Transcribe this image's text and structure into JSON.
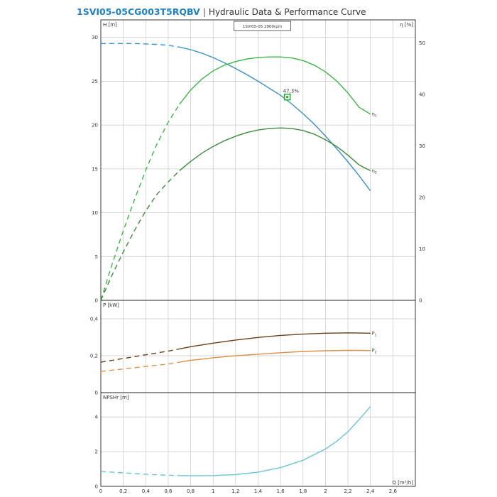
{
  "header": {
    "model": "1SVI05-05CG003T5RQBV",
    "separator": "|",
    "subtitle": "Hydraulic Data & Performance Curve"
  },
  "colors": {
    "head": "#3b8fc4",
    "eta1": "#3fb548",
    "eta2": "#3e8b3e",
    "p1": "#6b3f18",
    "p2": "#e0914a",
    "npsh": "#6cc4d4",
    "grid": "#c8c8c8",
    "axis": "#222222",
    "text": "#333333"
  },
  "chart_data": [
    {
      "id": "head_eff",
      "type": "line",
      "legend_box": "1SVI05-05 2900rpm",
      "ylabel_left": "H [m]",
      "ylabel_right": "η [%]",
      "xlim": [
        0,
        2.8
      ],
      "ylim_left": [
        0,
        32
      ],
      "ylim_right": [
        0,
        54.5
      ],
      "yticks_left": [
        "0",
        "5",
        "10",
        "15",
        "20",
        "25",
        "30"
      ],
      "yticks_right": [
        "0",
        "10",
        "20",
        "30",
        "40",
        "50"
      ],
      "grid": true,
      "annotation": {
        "text": "47,3%",
        "x": 1.66,
        "y": 23.2
      },
      "series": [
        {
          "key": "head",
          "axis": "left",
          "dash_until": 0.7,
          "x": [
            0,
            0.1,
            0.2,
            0.3,
            0.4,
            0.5,
            0.6,
            0.7,
            0.8,
            0.9,
            1.0,
            1.1,
            1.2,
            1.3,
            1.4,
            1.5,
            1.6,
            1.7,
            1.8,
            1.9,
            2.0,
            2.1,
            2.2,
            2.3,
            2.4
          ],
          "y": [
            29.3,
            29.3,
            29.3,
            29.3,
            29.25,
            29.2,
            29.1,
            28.9,
            28.6,
            28.2,
            27.7,
            27.1,
            26.45,
            25.75,
            25.0,
            24.2,
            23.4,
            22.4,
            21.3,
            20.1,
            18.75,
            17.3,
            15.8,
            14.2,
            12.5
          ]
        },
        {
          "key": "eta1",
          "axis": "right",
          "name": "η",
          "sub": "1",
          "dash_until": 0.7,
          "x": [
            0,
            0.1,
            0.2,
            0.3,
            0.4,
            0.5,
            0.6,
            0.7,
            0.8,
            0.9,
            1.0,
            1.1,
            1.2,
            1.3,
            1.4,
            1.5,
            1.6,
            1.7,
            1.8,
            1.9,
            2.0,
            2.1,
            2.2,
            2.3,
            2.4
          ],
          "y": [
            0,
            7.0,
            13.5,
            19.6,
            25.3,
            30.4,
            34.6,
            38.1,
            40.9,
            43.0,
            44.6,
            45.7,
            46.4,
            46.9,
            47.2,
            47.3,
            47.3,
            47.1,
            46.6,
            45.7,
            44.4,
            42.6,
            40.3,
            37.5,
            36.2
          ]
        },
        {
          "key": "eta2",
          "axis": "right",
          "name": "η",
          "sub": "2",
          "dash_until": 0.7,
          "x": [
            0,
            0.1,
            0.2,
            0.3,
            0.4,
            0.5,
            0.6,
            0.7,
            0.8,
            0.9,
            1.0,
            1.1,
            1.2,
            1.3,
            1.4,
            1.5,
            1.6,
            1.7,
            1.8,
            1.9,
            2.0,
            2.1,
            2.2,
            2.3,
            2.4
          ],
          "y": [
            0,
            4.9,
            9.4,
            13.6,
            17.4,
            20.6,
            23.0,
            25.2,
            27.0,
            28.6,
            29.9,
            31.0,
            31.9,
            32.6,
            33.1,
            33.4,
            33.5,
            33.4,
            33.0,
            32.3,
            31.2,
            29.9,
            28.2,
            26.3,
            25.2
          ]
        }
      ]
    },
    {
      "id": "power",
      "type": "line",
      "ylabel": "P [kW]",
      "xlim": [
        0,
        2.8
      ],
      "ylim": [
        0,
        0.5
      ],
      "yticks": [
        "0",
        "0,2",
        "0,4"
      ],
      "grid": true,
      "series": [
        {
          "key": "p1",
          "name": "P",
          "sub": "1",
          "dash_until": 0.7,
          "x": [
            0,
            0.2,
            0.4,
            0.6,
            0.7,
            0.8,
            1.0,
            1.2,
            1.4,
            1.6,
            1.8,
            2.0,
            2.2,
            2.4
          ],
          "y": [
            0.165,
            0.185,
            0.205,
            0.225,
            0.237,
            0.249,
            0.268,
            0.285,
            0.299,
            0.31,
            0.317,
            0.322,
            0.324,
            0.322
          ]
        },
        {
          "key": "p2",
          "name": "P",
          "sub": "2",
          "dash_until": 0.7,
          "x": [
            0,
            0.2,
            0.4,
            0.6,
            0.7,
            0.8,
            1.0,
            1.2,
            1.4,
            1.6,
            1.8,
            2.0,
            2.2,
            2.4
          ],
          "y": [
            0.115,
            0.128,
            0.142,
            0.155,
            0.165,
            0.175,
            0.189,
            0.2,
            0.208,
            0.216,
            0.223,
            0.227,
            0.229,
            0.228
          ]
        }
      ]
    },
    {
      "id": "npsh",
      "type": "line",
      "ylabel": "NPSHr [m]",
      "xlabel": "Q [m³/h]",
      "xlim": [
        0,
        2.8
      ],
      "ylim": [
        0,
        5.4
      ],
      "yticks": [
        "0",
        "2",
        "4"
      ],
      "xticks": [
        "0",
        "0,2",
        "0,4",
        "0,6",
        "0,8",
        "1",
        "1,2",
        "1,4",
        "1,6",
        "1,8",
        "2",
        "2,2",
        "2,4",
        "2,6"
      ],
      "grid": true,
      "series": [
        {
          "key": "npsh",
          "dash_until": 0.7,
          "x": [
            0,
            0.2,
            0.4,
            0.6,
            0.7,
            0.8,
            1.0,
            1.2,
            1.4,
            1.6,
            1.8,
            2.0,
            2.1,
            2.2,
            2.3,
            2.4
          ],
          "y": [
            0.85,
            0.78,
            0.7,
            0.64,
            0.62,
            0.61,
            0.62,
            0.68,
            0.82,
            1.08,
            1.5,
            2.15,
            2.6,
            3.15,
            3.85,
            4.6
          ]
        }
      ]
    }
  ]
}
